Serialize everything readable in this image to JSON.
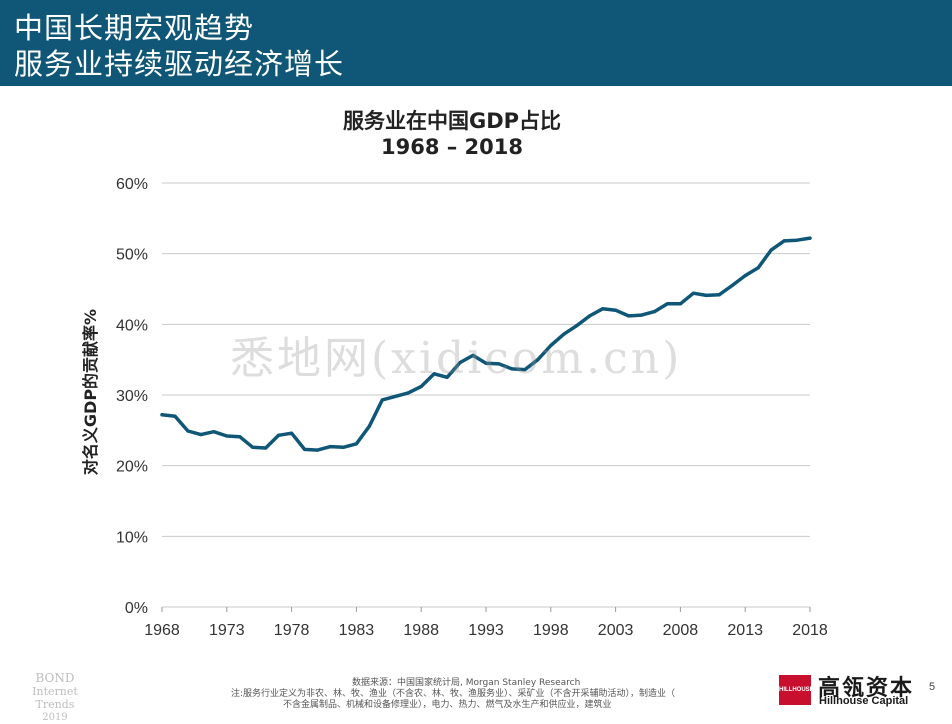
{
  "header": {
    "line1": "中国长期宏观趋势",
    "line2": "服务业持续驱动经济增长",
    "bg_color": "#0f5677"
  },
  "chart_data": {
    "type": "line",
    "title": "服务业在中国GDP占比",
    "subtitle": "1968 – 2018",
    "ylabel": "对名义GDP的贡献率%",
    "xlabel": "",
    "xlim": [
      1968,
      2018
    ],
    "ylim": [
      0,
      60
    ],
    "x_ticks": [
      "1968",
      "1973",
      "1978",
      "1983",
      "1988",
      "1993",
      "1998",
      "2003",
      "2008",
      "2013",
      "2018"
    ],
    "y_ticks": [
      "0%",
      "10%",
      "20%",
      "30%",
      "40%",
      "50%",
      "60%"
    ],
    "grid": true,
    "line_color": "#0f5677",
    "series": [
      {
        "x": [
          1968,
          1969,
          1970,
          1971,
          1972,
          1973,
          1974,
          1975,
          1976,
          1977,
          1978,
          1979,
          1980,
          1981,
          1982,
          1983,
          1984,
          1985,
          1986,
          1987,
          1988,
          1989,
          1990,
          1991,
          1992,
          1993,
          1994,
          1995,
          1996,
          1997,
          1998,
          1999,
          2000,
          2001,
          2002,
          2003,
          2004,
          2005,
          2006,
          2007,
          2008,
          2009,
          2010,
          2011,
          2012,
          2013,
          2014,
          2015,
          2016,
          2017,
          2018
        ],
        "values": [
          27.2,
          27.0,
          24.9,
          24.4,
          24.8,
          24.2,
          24.1,
          22.6,
          22.5,
          24.3,
          24.6,
          22.3,
          22.2,
          22.7,
          22.6,
          23.1,
          25.6,
          29.3,
          29.8,
          30.3,
          31.2,
          33.0,
          32.5,
          34.6,
          35.6,
          34.5,
          34.4,
          33.7,
          33.6,
          35.0,
          37.0,
          38.6,
          39.8,
          41.2,
          42.2,
          42.0,
          41.2,
          41.3,
          41.8,
          42.9,
          42.9,
          44.4,
          44.1,
          44.2,
          45.5,
          46.9,
          48.0,
          50.5,
          51.8,
          51.9,
          52.2
        ]
      }
    ]
  },
  "watermark": "悉地网(xidicom.cn)",
  "footer": {
    "bond_line1": "BOND",
    "bond_line2": "Internet Trends",
    "bond_line3": "2019",
    "source_line1": "数据来源：中国国家统计局, Morgan Stanley Research",
    "source_line2": "注:服务行业定义为非农、林、牧、渔业（不含农、林、牧、渔服务业）、采矿业（不含开采辅助活动），制造业（",
    "source_line3": "不含金属制品、机械和设备修理业），电力、热力、燃气及水生产和供应业，建筑业",
    "logo_mark": "HILLHOUSE",
    "logo_cn": "高瓴资本",
    "logo_en": "Hillhouse Capital",
    "page_number": "5",
    "logo_color": "#c8102e"
  }
}
